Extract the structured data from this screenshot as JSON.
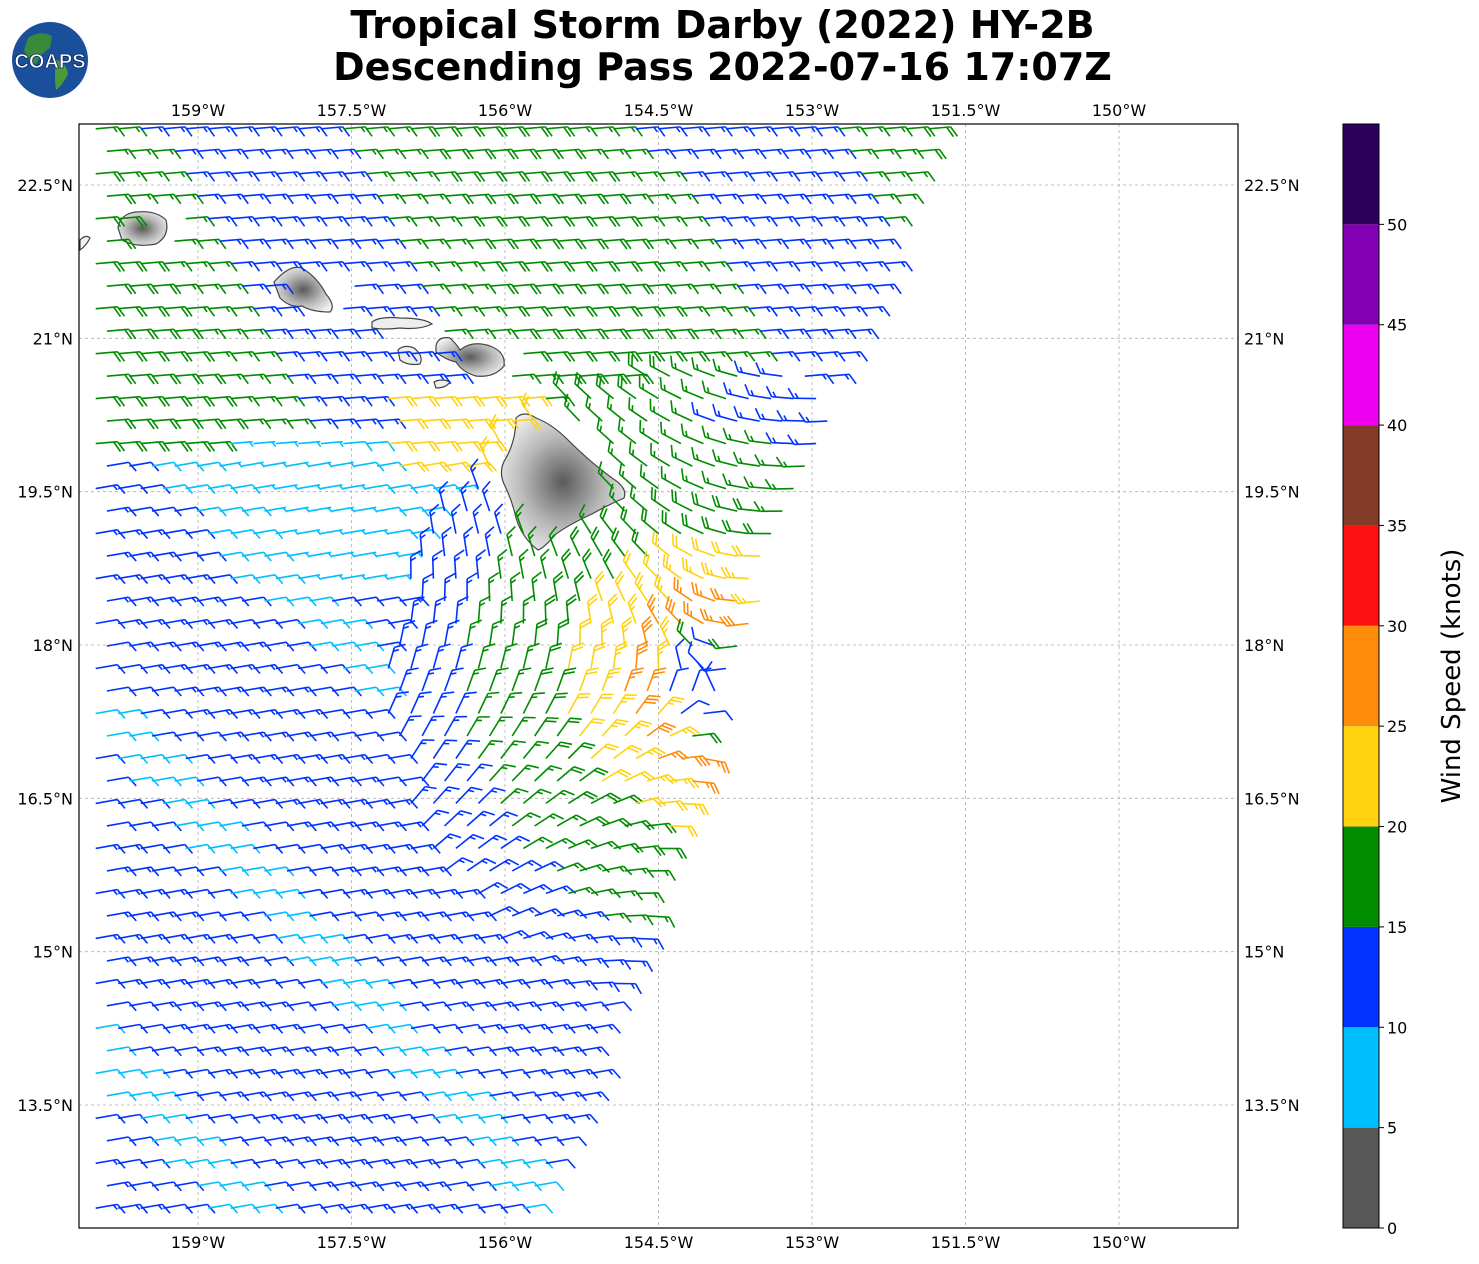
{
  "title": {
    "line1": "Tropical Storm Darby (2022) HY-2B",
    "line2": "Descending Pass 2022-07-16 17:07Z"
  },
  "logo": {
    "text": "COAPS",
    "icon": "globe-icon"
  },
  "map": {
    "lon_range": [
      -160.0,
      -148.66
    ],
    "lat_range": [
      12.25,
      23.1
    ],
    "lon_ticks": [
      {
        "value": -159.0,
        "label": "159°W"
      },
      {
        "value": -157.5,
        "label": "157.5°W"
      },
      {
        "value": -156.0,
        "label": "156°W"
      },
      {
        "value": -154.5,
        "label": "154.5°W"
      },
      {
        "value": -153.0,
        "label": "153°W"
      },
      {
        "value": -151.5,
        "label": "151.5°W"
      },
      {
        "value": -150.0,
        "label": "150°W"
      }
    ],
    "lat_ticks": [
      {
        "value": 22.5,
        "label": "22.5°N"
      },
      {
        "value": 21.0,
        "label": "21°N"
      },
      {
        "value": 19.5,
        "label": "19.5°N"
      },
      {
        "value": 18.0,
        "label": "18°N"
      },
      {
        "value": 16.5,
        "label": "16.5°N"
      },
      {
        "value": 15.0,
        "label": "15°N"
      },
      {
        "value": 13.5,
        "label": "13.5°N"
      }
    ],
    "grid": true,
    "storm_center": {
      "lon": -153.95,
      "lat": 17.55
    },
    "islands": [
      {
        "name": "Kauai",
        "lon": -159.5,
        "lat": 22.05
      },
      {
        "name": "Oahu",
        "lon": -158.0,
        "lat": 21.48
      },
      {
        "name": "Molokai",
        "lon": -157.0,
        "lat": 21.13
      },
      {
        "name": "Lanai",
        "lon": -156.92,
        "lat": 20.83
      },
      {
        "name": "Maui",
        "lon": -156.32,
        "lat": 20.8
      },
      {
        "name": "Hawaii",
        "lon": -155.5,
        "lat": 19.6
      }
    ]
  },
  "colorbar": {
    "label": "Wind Speed (knots)",
    "bins": [
      {
        "min": 0,
        "max": 5,
        "color": "#575757"
      },
      {
        "min": 5,
        "max": 10,
        "color": "#00bfff"
      },
      {
        "min": 10,
        "max": 15,
        "color": "#0033ff"
      },
      {
        "min": 15,
        "max": 20,
        "color": "#008c00"
      },
      {
        "min": 20,
        "max": 25,
        "color": "#ffd20f"
      },
      {
        "min": 25,
        "max": 30,
        "color": "#ff8c0a"
      },
      {
        "min": 30,
        "max": 35,
        "color": "#ff1010"
      },
      {
        "min": 35,
        "max": 40,
        "color": "#823c28"
      },
      {
        "min": 40,
        "max": 45,
        "color": "#f000f0"
      },
      {
        "min": 45,
        "max": 50,
        "color": "#8200b4"
      },
      {
        "min": 50,
        "max": 55,
        "color": "#2d005a"
      }
    ],
    "tick_labels": [
      "0",
      "5",
      "10",
      "15",
      "20",
      "25",
      "30",
      "35",
      "40",
      "45",
      "50"
    ]
  }
}
